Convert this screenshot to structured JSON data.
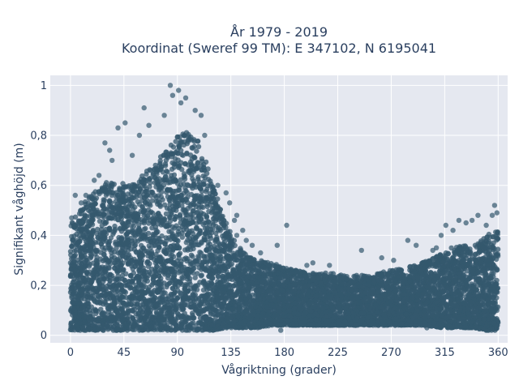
{
  "chart_data": {
    "type": "scatter",
    "title": "År 1979 - 2019",
    "subtitle": "Koordinat (Sweref 99 TM): E 347102, N 6195041",
    "xlabel": "Vågriktning (grader)",
    "ylabel": "Signifikant våghöjd (m)",
    "xlim": [
      -17,
      368
    ],
    "ylim": [
      -0.03,
      1.04
    ],
    "x_ticks": [
      0,
      45,
      90,
      135,
      180,
      225,
      270,
      315,
      360
    ],
    "x_tick_labels": [
      "0",
      "45",
      "90",
      "135",
      "180",
      "225",
      "270",
      "315",
      "360"
    ],
    "y_ticks": [
      0,
      0.2,
      0.4,
      0.6,
      0.8,
      1
    ],
    "y_tick_labels": [
      "0",
      "0,2",
      "0,4",
      "0,6",
      "0,8",
      "1"
    ],
    "marker_color": "#34586e",
    "background_color": "#e5e8f0",
    "grid": true,
    "legend": "none",
    "envelope": {
      "description_points_x": [
        0,
        10,
        20,
        30,
        40,
        50,
        60,
        70,
        80,
        90,
        100,
        110,
        120,
        130,
        140,
        150,
        160,
        170,
        180,
        190,
        200,
        210,
        220,
        230,
        240,
        250,
        260,
        270,
        280,
        290,
        300,
        310,
        320,
        330,
        340,
        350,
        360
      ],
      "upper_y": [
        0.45,
        0.52,
        0.58,
        0.62,
        0.62,
        0.6,
        0.64,
        0.68,
        0.74,
        0.8,
        0.82,
        0.76,
        0.6,
        0.46,
        0.36,
        0.32,
        0.3,
        0.29,
        0.27,
        0.26,
        0.25,
        0.25,
        0.25,
        0.24,
        0.24,
        0.24,
        0.25,
        0.26,
        0.27,
        0.28,
        0.3,
        0.32,
        0.35,
        0.36,
        0.36,
        0.4,
        0.42
      ],
      "lower_y": [
        0.02,
        0.02,
        0.02,
        0.02,
        0.02,
        0.02,
        0.02,
        0.02,
        0.02,
        0.02,
        0.02,
        0.02,
        0.02,
        0.03,
        0.03,
        0.03,
        0.03,
        0.04,
        0.04,
        0.04,
        0.04,
        0.04,
        0.04,
        0.04,
        0.04,
        0.04,
        0.04,
        0.04,
        0.04,
        0.04,
        0.04,
        0.03,
        0.03,
        0.03,
        0.03,
        0.02,
        0.02
      ]
    },
    "outliers": [
      {
        "x": 84,
        "y": 1.0
      },
      {
        "x": 91,
        "y": 0.98
      },
      {
        "x": 97,
        "y": 0.95
      },
      {
        "x": 86,
        "y": 0.96
      },
      {
        "x": 93,
        "y": 0.93
      },
      {
        "x": 62,
        "y": 0.91
      },
      {
        "x": 79,
        "y": 0.88
      },
      {
        "x": 105,
        "y": 0.9
      },
      {
        "x": 40,
        "y": 0.83
      },
      {
        "x": 46,
        "y": 0.85
      },
      {
        "x": 66,
        "y": 0.84
      },
      {
        "x": 110,
        "y": 0.88
      },
      {
        "x": 113,
        "y": 0.8
      },
      {
        "x": 29,
        "y": 0.77
      },
      {
        "x": 33,
        "y": 0.74
      },
      {
        "x": 58,
        "y": 0.8
      },
      {
        "x": 35,
        "y": 0.7
      },
      {
        "x": 52,
        "y": 0.72
      },
      {
        "x": 24,
        "y": 0.64
      },
      {
        "x": 20,
        "y": 0.62
      },
      {
        "x": 124,
        "y": 0.6
      },
      {
        "x": 131,
        "y": 0.57
      },
      {
        "x": 13,
        "y": 0.56
      },
      {
        "x": 9,
        "y": 0.53
      },
      {
        "x": 1,
        "y": 0.47
      },
      {
        "x": 4,
        "y": 0.56
      },
      {
        "x": 134,
        "y": 0.53
      },
      {
        "x": 140,
        "y": 0.48
      },
      {
        "x": 138,
        "y": 0.46
      },
      {
        "x": 145,
        "y": 0.42
      },
      {
        "x": 140,
        "y": 0.4
      },
      {
        "x": 153,
        "y": 0.36
      },
      {
        "x": 148,
        "y": 0.38
      },
      {
        "x": 160,
        "y": 0.33
      },
      {
        "x": 174,
        "y": 0.36
      },
      {
        "x": 182,
        "y": 0.44
      },
      {
        "x": 199,
        "y": 0.28
      },
      {
        "x": 204,
        "y": 0.29
      },
      {
        "x": 218,
        "y": 0.28
      },
      {
        "x": 245,
        "y": 0.34
      },
      {
        "x": 262,
        "y": 0.31
      },
      {
        "x": 272,
        "y": 0.3
      },
      {
        "x": 284,
        "y": 0.38
      },
      {
        "x": 291,
        "y": 0.36
      },
      {
        "x": 305,
        "y": 0.34
      },
      {
        "x": 308,
        "y": 0.35
      },
      {
        "x": 312,
        "y": 0.4
      },
      {
        "x": 316,
        "y": 0.44
      },
      {
        "x": 322,
        "y": 0.42
      },
      {
        "x": 327,
        "y": 0.46
      },
      {
        "x": 333,
        "y": 0.45
      },
      {
        "x": 338,
        "y": 0.46
      },
      {
        "x": 343,
        "y": 0.48
      },
      {
        "x": 350,
        "y": 0.44
      },
      {
        "x": 355,
        "y": 0.48
      },
      {
        "x": 357,
        "y": 0.52
      },
      {
        "x": 359,
        "y": 0.49
      },
      {
        "x": 240,
        "y": 0.04
      },
      {
        "x": 177,
        "y": 0.02
      },
      {
        "x": 300,
        "y": 0.03
      }
    ]
  }
}
